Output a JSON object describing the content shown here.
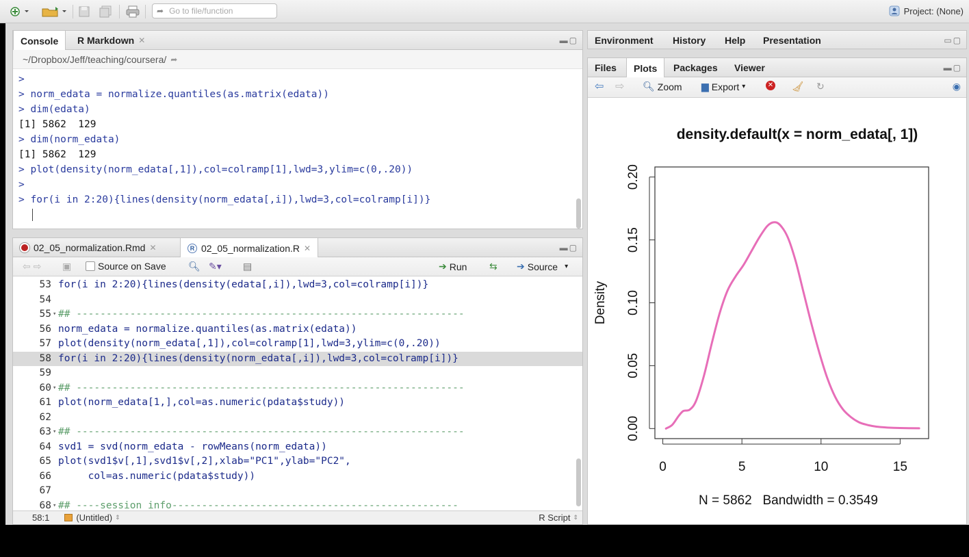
{
  "toolbar": {
    "goto_placeholder": "Go to file/function",
    "project_label": "Project: (None)"
  },
  "console_pane": {
    "tabs": [
      {
        "label": "Console",
        "active": true
      },
      {
        "label": "R Markdown",
        "active": false,
        "closable": true
      }
    ],
    "path": "~/Dropbox/Jeff/teaching/coursera/",
    "lines": [
      {
        "kind": "cmd",
        "text": ">"
      },
      {
        "kind": "cmd",
        "text": "> norm_edata = normalize.quantiles(as.matrix(edata))"
      },
      {
        "kind": "cmd",
        "text": "> dim(edata)"
      },
      {
        "kind": "out",
        "text": "[1] 5862  129"
      },
      {
        "kind": "cmd",
        "text": "> dim(norm_edata)"
      },
      {
        "kind": "out",
        "text": "[1] 5862  129"
      },
      {
        "kind": "cmd",
        "text": "> plot(density(norm_edata[,1]),col=colramp[1],lwd=3,ylim=c(0,.20))"
      },
      {
        "kind": "cmd",
        "text": ">"
      },
      {
        "kind": "cmd",
        "text": "> for(i in 2:20){lines(density(norm_edata[,i]),lwd=3,col=colramp[i])}"
      }
    ]
  },
  "source_pane": {
    "tabs": [
      {
        "label": "02_05_normalization.Rmd",
        "active": false,
        "icon": "rmd-file-icon"
      },
      {
        "label": "02_05_normalization.R",
        "active": true,
        "icon": "r-file-icon"
      }
    ],
    "toolbar": {
      "source_on_save": "Source on Save",
      "run": "Run",
      "source": "Source"
    },
    "code": [
      {
        "n": "53",
        "text": "for(i in 2:20){lines(density(edata[,i]),lwd=3,col=colramp[i])}",
        "comment": false,
        "fold": false,
        "highlight": false
      },
      {
        "n": "54",
        "text": "",
        "comment": false,
        "fold": false,
        "highlight": false
      },
      {
        "n": "55",
        "text": "## -----------------------------------------------------------------",
        "comment": true,
        "fold": true,
        "highlight": false
      },
      {
        "n": "56",
        "text": "norm_edata = normalize.quantiles(as.matrix(edata))",
        "comment": false,
        "fold": false,
        "highlight": false
      },
      {
        "n": "57",
        "text": "plot(density(norm_edata[,1]),col=colramp[1],lwd=3,ylim=c(0,.20))",
        "comment": false,
        "fold": false,
        "highlight": false
      },
      {
        "n": "58",
        "text": "for(i in 2:20){lines(density(norm_edata[,i]),lwd=3,col=colramp[i])}",
        "comment": false,
        "fold": false,
        "highlight": true
      },
      {
        "n": "59",
        "text": "",
        "comment": false,
        "fold": false,
        "highlight": false
      },
      {
        "n": "60",
        "text": "## -----------------------------------------------------------------",
        "comment": true,
        "fold": true,
        "highlight": false
      },
      {
        "n": "61",
        "text": "plot(norm_edata[1,],col=as.numeric(pdata$study))",
        "comment": false,
        "fold": false,
        "highlight": false
      },
      {
        "n": "62",
        "text": "",
        "comment": false,
        "fold": false,
        "highlight": false
      },
      {
        "n": "63",
        "text": "## -----------------------------------------------------------------",
        "comment": true,
        "fold": true,
        "highlight": false
      },
      {
        "n": "64",
        "text": "svd1 = svd(norm_edata - rowMeans(norm_edata))",
        "comment": false,
        "fold": false,
        "highlight": false
      },
      {
        "n": "65",
        "text": "plot(svd1$v[,1],svd1$v[,2],xlab=\"PC1\",ylab=\"PC2\",",
        "comment": false,
        "fold": false,
        "highlight": false
      },
      {
        "n": "66",
        "text": "     col=as.numeric(pdata$study))",
        "comment": false,
        "fold": false,
        "highlight": false
      },
      {
        "n": "67",
        "text": "",
        "comment": false,
        "fold": false,
        "highlight": false
      },
      {
        "n": "68",
        "text": "## ----session_info------------------------------------------------",
        "comment": true,
        "fold": true,
        "highlight": false
      }
    ],
    "status": {
      "position": "58:1",
      "scope": "(Untitled)",
      "filetype": "R Script"
    }
  },
  "env_pane": {
    "tabs": [
      "Environment",
      "History",
      "Help",
      "Presentation"
    ]
  },
  "plots_pane": {
    "tabs": [
      {
        "label": "Files",
        "active": false
      },
      {
        "label": "Plots",
        "active": true
      },
      {
        "label": "Packages",
        "active": false
      },
      {
        "label": "Viewer",
        "active": false
      }
    ],
    "toolbar": {
      "zoom": "Zoom",
      "export": "Export"
    }
  },
  "chart_data": {
    "type": "line",
    "title": "density.default(x = norm_edata[, 1])",
    "xlabel": "N = 5862   Bandwidth = 0.3549",
    "ylabel": "Density",
    "xlim": [
      -0.5,
      16.8
    ],
    "ylim": [
      -0.008,
      0.208
    ],
    "xticks": [
      "0",
      "5",
      "10",
      "15"
    ],
    "yticks": [
      "0.00",
      "0.05",
      "0.10",
      "0.15",
      "0.20"
    ],
    "line_color": "#e76eb8",
    "series": [
      {
        "x": [
          0.2,
          0.6,
          1.0,
          1.3,
          1.7,
          2.1,
          2.6,
          3.1,
          3.6,
          4.1,
          4.6,
          5.1,
          5.6,
          6.1,
          6.6,
          7.0,
          7.4,
          7.9,
          8.4,
          8.9,
          9.4,
          9.9,
          10.4,
          10.9,
          11.4,
          11.9,
          12.4,
          12.9,
          13.5,
          14.2,
          15.0,
          16.2
        ],
        "y": [
          0.0,
          0.003,
          0.01,
          0.014,
          0.015,
          0.022,
          0.042,
          0.068,
          0.092,
          0.11,
          0.121,
          0.13,
          0.141,
          0.152,
          0.161,
          0.164,
          0.162,
          0.152,
          0.133,
          0.108,
          0.083,
          0.06,
          0.04,
          0.025,
          0.015,
          0.009,
          0.005,
          0.003,
          0.0015,
          0.0008,
          0.0004,
          0.0002
        ]
      }
    ]
  }
}
